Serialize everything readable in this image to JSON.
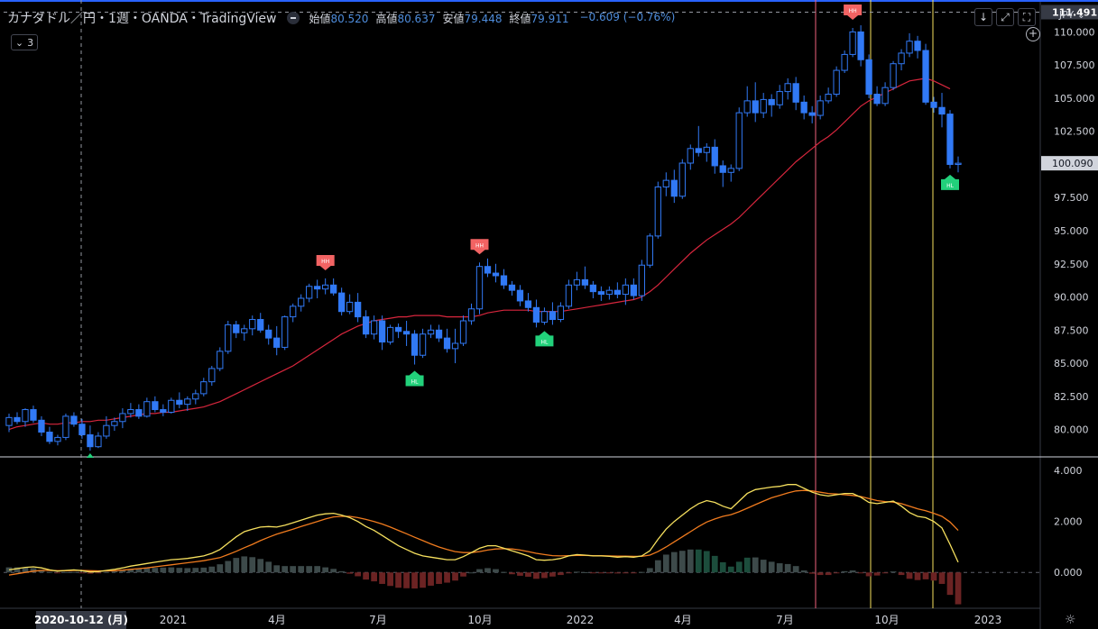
{
  "header": {
    "symbol": "カナダドル／円・1週・OANDA・TradingView",
    "open_label": "始値",
    "open_value": "80.520",
    "high_label": "高値",
    "high_value": "80.637",
    "low_label": "安値",
    "low_value": "79.448",
    "close_label": "終値",
    "close_value": "79.911",
    "change": "−0.609 (−0.76%)",
    "indicator_count": "3"
  },
  "toolbar": {
    "currency": "JPY"
  },
  "colors": {
    "background": "#000000",
    "candle": "#3179f5",
    "ma_line": "#d7263d",
    "macd_line": "#f6e05e",
    "signal_line": "#f07b1e",
    "hist_pos": "#3d4a4a",
    "hist_pos_green": "#1c4d3c",
    "hist_neg": "#6b2323",
    "label_high": "#f26363",
    "label_low": "#22d17b",
    "vline_red": "#f0627c",
    "vline_yellow": "#f6e05e",
    "axis_text": "#d1d4dc"
  },
  "chart_data": [
    {
      "type": "candlestick",
      "price_ticks": [
        "80.000",
        "82.500",
        "85.000",
        "87.500",
        "90.000",
        "92.500",
        "95.000",
        "97.500",
        "100.000",
        "102.500",
        "105.000",
        "107.500",
        "110.000"
      ],
      "crosshair_price": "111.491",
      "last_price": "100.090",
      "ylim": [
        78,
        112
      ],
      "x_ticks": [
        "2021",
        "4月",
        "7月",
        "10月",
        "2022",
        "4月",
        "7月",
        "10月",
        "2023"
      ],
      "crosshair_date": "2020-10-12 (月)",
      "candles": [
        [
          80.3,
          81.2,
          79.8,
          80.9
        ],
        [
          80.9,
          81.3,
          80.4,
          80.6
        ],
        [
          80.6,
          81.6,
          80.2,
          81.5
        ],
        [
          81.5,
          81.8,
          80.5,
          80.7
        ],
        [
          80.7,
          81.0,
          79.5,
          79.8
        ],
        [
          79.8,
          80.2,
          78.9,
          79.1
        ],
        [
          79.1,
          79.6,
          78.8,
          79.4
        ],
        [
          79.4,
          81.2,
          79.2,
          81.0
        ],
        [
          81.0,
          81.3,
          80.2,
          80.4
        ],
        [
          80.4,
          80.8,
          79.3,
          79.6
        ],
        [
          79.6,
          80.3,
          78.4,
          78.7
        ],
        [
          78.7,
          79.8,
          78.6,
          79.5
        ],
        [
          79.5,
          81.0,
          79.3,
          80.3
        ],
        [
          80.3,
          80.9,
          79.9,
          80.6
        ],
        [
          80.6,
          81.6,
          80.1,
          81.2
        ],
        [
          81.2,
          82.0,
          80.9,
          81.5
        ],
        [
          81.5,
          81.9,
          80.8,
          81.0
        ],
        [
          81.0,
          82.4,
          80.9,
          82.1
        ],
        [
          82.1,
          82.5,
          81.3,
          81.5
        ],
        [
          81.5,
          81.9,
          81.0,
          81.3
        ],
        [
          81.3,
          82.4,
          81.2,
          82.2
        ],
        [
          82.2,
          82.8,
          81.6,
          81.9
        ],
        [
          81.9,
          82.5,
          81.4,
          82.3
        ],
        [
          82.3,
          83.0,
          81.9,
          82.7
        ],
        [
          82.7,
          83.9,
          82.5,
          83.6
        ],
        [
          83.6,
          84.8,
          83.3,
          84.6
        ],
        [
          84.6,
          86.2,
          84.4,
          85.9
        ],
        [
          85.9,
          88.2,
          85.7,
          87.9
        ],
        [
          87.9,
          88.2,
          86.9,
          87.3
        ],
        [
          87.3,
          87.9,
          86.7,
          87.6
        ],
        [
          87.6,
          88.6,
          87.1,
          88.3
        ],
        [
          88.3,
          88.8,
          87.3,
          87.5
        ],
        [
          87.5,
          87.9,
          86.4,
          86.9
        ],
        [
          86.9,
          87.8,
          85.6,
          86.2
        ],
        [
          86.2,
          88.6,
          86.0,
          88.5
        ],
        [
          88.5,
          89.5,
          88.1,
          89.3
        ],
        [
          89.3,
          90.2,
          88.9,
          89.9
        ],
        [
          89.9,
          91.0,
          89.6,
          90.8
        ],
        [
          90.8,
          91.3,
          89.9,
          90.6
        ],
        [
          90.6,
          91.4,
          90.2,
          90.9
        ],
        [
          90.9,
          91.4,
          90.1,
          90.3
        ],
        [
          90.3,
          90.7,
          88.6,
          88.9
        ],
        [
          88.9,
          90.2,
          88.7,
          89.6
        ],
        [
          89.6,
          90.3,
          88.1,
          88.5
        ],
        [
          88.5,
          89.0,
          86.9,
          87.2
        ],
        [
          87.2,
          88.6,
          86.8,
          88.2
        ],
        [
          88.2,
          88.6,
          86.0,
          86.6
        ],
        [
          86.6,
          87.9,
          86.4,
          87.7
        ],
        [
          87.7,
          88.0,
          86.9,
          87.4
        ],
        [
          87.4,
          88.2,
          86.3,
          87.2
        ],
        [
          87.2,
          87.5,
          84.9,
          85.6
        ],
        [
          85.6,
          87.6,
          85.4,
          87.2
        ],
        [
          87.2,
          87.9,
          86.9,
          87.5
        ],
        [
          87.5,
          87.9,
          86.6,
          86.9
        ],
        [
          86.9,
          87.6,
          85.8,
          86.1
        ],
        [
          86.1,
          87.6,
          85.0,
          86.5
        ],
        [
          86.5,
          88.6,
          86.3,
          88.2
        ],
        [
          88.2,
          89.5,
          87.9,
          89.1
        ],
        [
          89.1,
          92.6,
          88.7,
          92.3
        ],
        [
          92.3,
          92.9,
          91.5,
          91.8
        ],
        [
          91.8,
          92.5,
          91.1,
          91.6
        ],
        [
          91.6,
          92.1,
          90.6,
          90.9
        ],
        [
          90.9,
          91.2,
          90.1,
          90.5
        ],
        [
          90.5,
          90.9,
          89.3,
          89.7
        ],
        [
          89.7,
          90.3,
          88.9,
          89.2
        ],
        [
          89.2,
          89.8,
          87.7,
          88.1
        ],
        [
          88.1,
          89.2,
          87.9,
          88.9
        ],
        [
          88.9,
          89.6,
          87.9,
          88.3
        ],
        [
          88.3,
          89.6,
          88.1,
          89.3
        ],
        [
          89.3,
          91.3,
          89.1,
          90.9
        ],
        [
          90.9,
          91.9,
          90.5,
          91.3
        ],
        [
          91.3,
          92.3,
          90.6,
          90.9
        ],
        [
          90.9,
          91.2,
          89.9,
          90.4
        ],
        [
          90.4,
          90.8,
          89.7,
          90.2
        ],
        [
          90.2,
          90.8,
          89.8,
          90.5
        ],
        [
          90.5,
          91.1,
          89.9,
          90.2
        ],
        [
          90.2,
          91.4,
          89.4,
          90.9
        ],
        [
          90.9,
          91.4,
          89.8,
          90.1
        ],
        [
          90.1,
          92.8,
          89.7,
          92.4
        ],
        [
          92.4,
          94.8,
          92.2,
          94.6
        ],
        [
          94.6,
          98.7,
          94.4,
          98.3
        ],
        [
          98.3,
          99.4,
          97.6,
          98.8
        ],
        [
          98.8,
          99.6,
          97.1,
          97.6
        ],
        [
          97.6,
          100.4,
          97.4,
          100.1
        ],
        [
          100.1,
          101.5,
          99.6,
          101.2
        ],
        [
          101.2,
          102.9,
          100.6,
          100.9
        ],
        [
          100.9,
          101.6,
          100.2,
          101.3
        ],
        [
          101.3,
          101.9,
          99.3,
          99.9
        ],
        [
          99.9,
          100.3,
          98.3,
          99.4
        ],
        [
          99.4,
          100.0,
          98.7,
          99.7
        ],
        [
          99.7,
          104.3,
          99.5,
          103.9
        ],
        [
          103.9,
          105.9,
          103.6,
          104.8
        ],
        [
          104.8,
          106.2,
          103.2,
          103.9
        ],
        [
          103.9,
          105.4,
          103.5,
          104.9
        ],
        [
          104.9,
          105.3,
          103.6,
          104.5
        ],
        [
          104.5,
          106.0,
          104.2,
          105.5
        ],
        [
          105.5,
          106.5,
          104.9,
          106.1
        ],
        [
          106.1,
          106.6,
          104.1,
          104.7
        ],
        [
          104.7,
          105.2,
          103.4,
          103.9
        ],
        [
          103.9,
          104.4,
          103.1,
          103.7
        ],
        [
          103.7,
          105.2,
          103.4,
          104.8
        ],
        [
          104.8,
          105.8,
          104.6,
          105.3
        ],
        [
          105.3,
          107.4,
          105.1,
          107.1
        ],
        [
          107.1,
          108.6,
          106.9,
          108.3
        ],
        [
          108.3,
          110.3,
          108.1,
          110.0
        ],
        [
          110.0,
          110.5,
          107.4,
          107.9
        ],
        [
          107.9,
          108.3,
          105.0,
          105.3
        ],
        [
          105.3,
          105.9,
          104.4,
          104.6
        ],
        [
          104.6,
          106.2,
          104.4,
          105.8
        ],
        [
          105.8,
          107.8,
          105.6,
          107.6
        ],
        [
          107.6,
          108.7,
          107.1,
          108.4
        ],
        [
          108.4,
          109.9,
          108.1,
          109.3
        ],
        [
          109.3,
          109.7,
          108.0,
          108.6
        ],
        [
          108.6,
          109.1,
          104.5,
          104.7
        ],
        [
          104.7,
          105.1,
          103.9,
          104.3
        ],
        [
          104.3,
          105.4,
          102.8,
          103.8
        ],
        [
          103.8,
          104.1,
          99.7,
          100.0
        ],
        [
          100.0,
          100.6,
          99.4,
          100.09
        ]
      ],
      "ma": [
        80.0,
        80.2,
        80.3,
        80.4,
        80.5,
        80.4,
        80.4,
        80.5,
        80.5,
        80.6,
        80.6,
        80.7,
        80.7,
        80.8,
        80.9,
        81.0,
        81.1,
        81.2,
        81.2,
        81.3,
        81.3,
        81.4,
        81.5,
        81.6,
        81.7,
        81.9,
        82.1,
        82.4,
        82.7,
        83.0,
        83.3,
        83.6,
        83.9,
        84.2,
        84.5,
        84.8,
        85.2,
        85.6,
        86.0,
        86.4,
        86.8,
        87.2,
        87.5,
        87.8,
        88.0,
        88.2,
        88.3,
        88.4,
        88.5,
        88.5,
        88.6,
        88.6,
        88.6,
        88.6,
        88.5,
        88.5,
        88.5,
        88.5,
        88.6,
        88.8,
        88.9,
        89.0,
        89.0,
        89.0,
        89.0,
        88.9,
        88.9,
        88.9,
        88.9,
        89.0,
        89.1,
        89.2,
        89.3,
        89.4,
        89.5,
        89.6,
        89.7,
        89.8,
        90.0,
        90.4,
        90.9,
        91.5,
        92.1,
        92.7,
        93.3,
        93.8,
        94.3,
        94.7,
        95.1,
        95.5,
        96.0,
        96.6,
        97.2,
        97.8,
        98.4,
        99.0,
        99.6,
        100.2,
        100.7,
        101.2,
        101.7,
        102.1,
        102.6,
        103.2,
        103.8,
        104.4,
        104.8,
        105.1,
        105.4,
        105.7,
        106.0,
        106.3,
        106.4,
        106.5,
        106.3,
        106.0,
        105.7
      ],
      "markers": [
        {
          "label": "HH",
          "type": "high",
          "index": 39
        },
        {
          "label": "HL",
          "type": "low",
          "index": 50
        },
        {
          "label": "HH",
          "type": "high",
          "index": 58
        },
        {
          "label": "HL",
          "type": "low",
          "index": 66
        },
        {
          "label": "HH",
          "type": "high",
          "index": 104
        },
        {
          "label": "HL",
          "type": "low",
          "index": 116
        }
      ]
    },
    {
      "type": "macd",
      "ticks": [
        "4.000",
        "2.000",
        "0.000"
      ],
      "ylim": [
        -1.3,
        4.5
      ],
      "macd": [
        0.1,
        0.15,
        0.2,
        0.22,
        0.18,
        0.1,
        0.05,
        0.08,
        0.1,
        0.07,
        0.02,
        0.03,
        0.08,
        0.12,
        0.18,
        0.25,
        0.3,
        0.35,
        0.4,
        0.45,
        0.5,
        0.52,
        0.55,
        0.6,
        0.65,
        0.75,
        0.9,
        1.15,
        1.4,
        1.6,
        1.7,
        1.78,
        1.8,
        1.78,
        1.85,
        1.95,
        2.05,
        2.15,
        2.25,
        2.3,
        2.32,
        2.25,
        2.15,
        2.0,
        1.8,
        1.65,
        1.45,
        1.25,
        1.05,
        0.9,
        0.75,
        0.65,
        0.6,
        0.55,
        0.5,
        0.5,
        0.62,
        0.78,
        0.95,
        1.05,
        1.05,
        0.95,
        0.85,
        0.75,
        0.65,
        0.5,
        0.48,
        0.5,
        0.55,
        0.65,
        0.7,
        0.68,
        0.65,
        0.65,
        0.63,
        0.6,
        0.62,
        0.6,
        0.65,
        0.85,
        1.3,
        1.7,
        2.0,
        2.25,
        2.5,
        2.7,
        2.82,
        2.75,
        2.6,
        2.5,
        2.8,
        3.1,
        3.25,
        3.3,
        3.35,
        3.38,
        3.45,
        3.45,
        3.3,
        3.15,
        3.05,
        3.0,
        3.05,
        3.1,
        3.1,
        2.95,
        2.75,
        2.7,
        2.75,
        2.8,
        2.6,
        2.35,
        2.2,
        2.15,
        2.0,
        1.75,
        1.1,
        0.4
      ],
      "signal": [
        -0.1,
        -0.05,
        0.0,
        0.05,
        0.08,
        0.08,
        0.07,
        0.07,
        0.08,
        0.08,
        0.07,
        0.06,
        0.06,
        0.07,
        0.09,
        0.12,
        0.15,
        0.18,
        0.22,
        0.26,
        0.3,
        0.34,
        0.38,
        0.42,
        0.46,
        0.52,
        0.58,
        0.7,
        0.83,
        0.97,
        1.1,
        1.25,
        1.38,
        1.5,
        1.6,
        1.7,
        1.8,
        1.9,
        2.0,
        2.1,
        2.18,
        2.2,
        2.2,
        2.15,
        2.08,
        2.0,
        1.9,
        1.78,
        1.65,
        1.52,
        1.38,
        1.25,
        1.12,
        1.0,
        0.9,
        0.82,
        0.78,
        0.78,
        0.82,
        0.88,
        0.92,
        0.93,
        0.92,
        0.88,
        0.82,
        0.75,
        0.7,
        0.66,
        0.65,
        0.66,
        0.67,
        0.67,
        0.66,
        0.66,
        0.65,
        0.64,
        0.64,
        0.63,
        0.63,
        0.68,
        0.82,
        1.0,
        1.2,
        1.4,
        1.6,
        1.8,
        1.98,
        2.1,
        2.2,
        2.27,
        2.38,
        2.52,
        2.66,
        2.8,
        2.93,
        3.02,
        3.12,
        3.2,
        3.22,
        3.2,
        3.15,
        3.1,
        3.08,
        3.05,
        3.02,
        2.98,
        2.9,
        2.82,
        2.78,
        2.76,
        2.7,
        2.6,
        2.5,
        2.42,
        2.32,
        2.2,
        1.98,
        1.65
      ],
      "histogram": [
        0.2,
        0.2,
        0.2,
        0.17,
        0.1,
        0.02,
        -0.02,
        0.01,
        0.02,
        -0.01,
        -0.05,
        -0.03,
        0.02,
        0.05,
        0.09,
        0.13,
        0.15,
        0.17,
        0.18,
        0.19,
        0.2,
        0.18,
        0.17,
        0.18,
        0.19,
        0.23,
        0.32,
        0.45,
        0.57,
        0.63,
        0.6,
        0.53,
        0.42,
        0.28,
        0.25,
        0.25,
        0.25,
        0.25,
        0.25,
        0.2,
        0.14,
        0.05,
        -0.05,
        -0.15,
        -0.28,
        -0.35,
        -0.45,
        -0.53,
        -0.6,
        -0.62,
        -0.63,
        -0.6,
        -0.52,
        -0.45,
        -0.4,
        -0.32,
        -0.16,
        0.0,
        0.13,
        0.17,
        0.13,
        0.02,
        -0.07,
        -0.13,
        -0.17,
        -0.25,
        -0.22,
        -0.16,
        -0.1,
        -0.01,
        0.03,
        0.01,
        -0.01,
        -0.01,
        -0.02,
        -0.04,
        -0.02,
        -0.03,
        0.02,
        0.17,
        0.48,
        0.7,
        0.8,
        0.85,
        0.9,
        0.9,
        0.84,
        0.65,
        0.4,
        0.23,
        0.42,
        0.58,
        0.59,
        0.5,
        0.42,
        0.36,
        0.33,
        0.25,
        0.08,
        -0.05,
        -0.1,
        -0.1,
        -0.03,
        0.05,
        0.08,
        -0.03,
        -0.15,
        -0.12,
        -0.03,
        0.04,
        -0.1,
        -0.25,
        -0.3,
        -0.27,
        -0.32,
        -0.45,
        -0.88,
        -1.25
      ]
    }
  ]
}
